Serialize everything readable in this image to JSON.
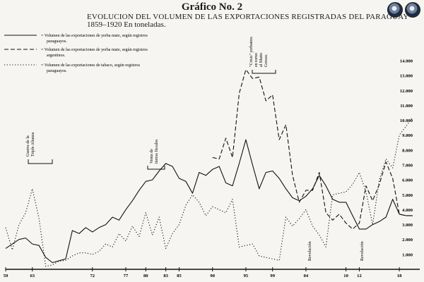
{
  "header": {
    "title": "Gráfico No. 2",
    "subtitle": "EVOLUCION DEL VOLUMEN DE LAS EXPORTACIONES REGISTRADAS DEL PARAGUAY",
    "subtitle2": "1859–1920   En toneladas."
  },
  "seals": [
    "seal-left-icon",
    "seal-right-icon"
  ],
  "chart_data": {
    "type": "line",
    "title": "Gráfico No. 2",
    "subtitle": "EVOLUCION DEL VOLUMEN DE LAS EXPORTACIONES REGISTRADAS DEL PARAGUAY 1859–1920 En toneladas.",
    "xlim": [
      1859,
      1920
    ],
    "ylim": [
      0,
      14000
    ],
    "x_ticks": [
      {
        "value": 1859,
        "label": "59"
      },
      {
        "value": 1863,
        "label": "63"
      },
      {
        "value": 1872,
        "label": "72"
      },
      {
        "value": 1877,
        "label": "77"
      },
      {
        "value": 1880,
        "label": "80"
      },
      {
        "value": 1883,
        "label": "83"
      },
      {
        "value": 1885,
        "label": "85"
      },
      {
        "value": 1890,
        "label": "90"
      },
      {
        "value": 1895,
        "label": "95"
      },
      {
        "value": 1899,
        "label": "99"
      },
      {
        "value": 1904,
        "label": "04"
      },
      {
        "value": 1910,
        "label": "10"
      },
      {
        "value": 1912,
        "label": "12"
      },
      {
        "value": 1918,
        "label": "18"
      }
    ],
    "y_ticks": [
      {
        "value": 1000,
        "label": "1.000"
      },
      {
        "value": 2000,
        "label": "2.000"
      },
      {
        "value": 3000,
        "label": "3.000"
      },
      {
        "value": 4000,
        "label": "4.000"
      },
      {
        "value": 5000,
        "label": "5.000"
      },
      {
        "value": 6000,
        "label": "6.000"
      },
      {
        "value": 7000,
        "label": "7.000"
      },
      {
        "value": 8000,
        "label": "8.000"
      },
      {
        "value": 9000,
        "label": "9.000"
      },
      {
        "value": 10000,
        "label": "10.000"
      },
      {
        "value": 11000,
        "label": "11.000"
      },
      {
        "value": 12000,
        "label": "12.000"
      },
      {
        "value": 13000,
        "label": "13.000"
      },
      {
        "value": 14000,
        "label": "14.000"
      }
    ],
    "series": [
      {
        "name": "= Volumen de las exportaciones de yerba mate, según registros paraguayos.",
        "style": "solid",
        "x": [
          1859,
          1860,
          1861,
          1862,
          1863,
          1864,
          1865,
          1866,
          1868,
          1869,
          1870,
          1871,
          1872,
          1873,
          1874,
          1875,
          1876,
          1877,
          1878,
          1879,
          1880,
          1881,
          1882,
          1883,
          1884,
          1885,
          1886,
          1887,
          1888,
          1889,
          1890,
          1891,
          1892,
          1893,
          1894,
          1895,
          1896,
          1897,
          1898,
          1899,
          1900,
          1901,
          1902,
          1903,
          1904,
          1905,
          1906,
          1907,
          1908,
          1909,
          1910,
          1911,
          1912,
          1913,
          1914,
          1915,
          1916,
          1917,
          1918,
          1919,
          1920
        ],
        "y": [
          1400,
          1700,
          2000,
          2100,
          1700,
          1600,
          800,
          450,
          700,
          2600,
          2400,
          2800,
          2500,
          2800,
          3000,
          3500,
          3300,
          4000,
          4600,
          5300,
          5900,
          6000,
          6600,
          7100,
          6900,
          6100,
          5900,
          5100,
          6500,
          6300,
          6700,
          6900,
          5800,
          5600,
          7100,
          8700,
          7000,
          5400,
          6500,
          6600,
          6100,
          5400,
          4800,
          4600,
          4900,
          5400,
          6300,
          5600,
          4700,
          4500,
          4500,
          3600,
          2700,
          2700,
          3000,
          3200,
          3500,
          4700,
          3700,
          3600,
          3600
        ]
      },
      {
        "name": "= Volumen de las exportaciones de yerba mate, según registros argentinos.",
        "style": "dashed",
        "x": [
          1890,
          1891,
          1892,
          1893,
          1894,
          1895,
          1896,
          1897,
          1898,
          1899,
          1900,
          1901,
          1902,
          1903,
          1904,
          1905,
          1906,
          1907,
          1908,
          1909,
          1910,
          1911,
          1912,
          1913,
          1914,
          1915,
          1916,
          1917,
          1918,
          1919,
          1920
        ],
        "y": [
          7500,
          7400,
          8800,
          7500,
          11800,
          13400,
          12800,
          12900,
          11300,
          11700,
          8700,
          9700,
          6300,
          4500,
          5300,
          5300,
          6500,
          3800,
          3300,
          3700,
          3100,
          2700,
          3100,
          5600,
          4600,
          5700,
          7200,
          6100,
          3700,
          3600,
          3600
        ]
      },
      {
        "name": "= Volumen de las exportaciones de tabaco, según registros paraguayos.",
        "style": "dotted",
        "x": [
          1859,
          1860,
          1861,
          1862,
          1863,
          1864,
          1865,
          1866,
          1867,
          1868,
          1869,
          1870,
          1871,
          1872,
          1873,
          1874,
          1875,
          1876,
          1877,
          1878,
          1879,
          1880,
          1881,
          1882,
          1883,
          1884,
          1885,
          1886,
          1887,
          1888,
          1889,
          1890,
          1891,
          1892,
          1893,
          1894,
          1895,
          1896,
          1897,
          1898,
          1899,
          1900,
          1901,
          1902,
          1903,
          1904,
          1905,
          1906,
          1907,
          1908,
          1909,
          1910,
          1911,
          1912,
          1913,
          1914,
          1915,
          1916,
          1917,
          1918,
          1919,
          1920
        ],
        "y": [
          2800,
          1300,
          3000,
          3800,
          5400,
          3400,
          200,
          300,
          550,
          600,
          900,
          1100,
          1100,
          1000,
          1200,
          1700,
          1500,
          2400,
          1900,
          2900,
          2200,
          3800,
          2300,
          3500,
          1400,
          2400,
          3000,
          4300,
          5000,
          4500,
          3600,
          4200,
          4000,
          3800,
          4700,
          1500,
          1600,
          1700,
          900,
          800,
          700,
          600,
          3500,
          2900,
          3400,
          4000,
          2900,
          2300,
          1500,
          5000,
          5100,
          5200,
          5700,
          6500,
          5200,
          3000,
          6000,
          7400,
          6800,
          9000,
          9600,
          10200
        ]
      }
    ],
    "annotations": [
      {
        "text": "Guerra de la Triple Alianza"
      },
      {
        "text": "Venta de tierras fiscales"
      },
      {
        "text": "\"Crisis\" yerbatera en torno al Matto Grosso."
      },
      {
        "text": "Revolución"
      },
      {
        "text": "Revolución"
      }
    ]
  }
}
